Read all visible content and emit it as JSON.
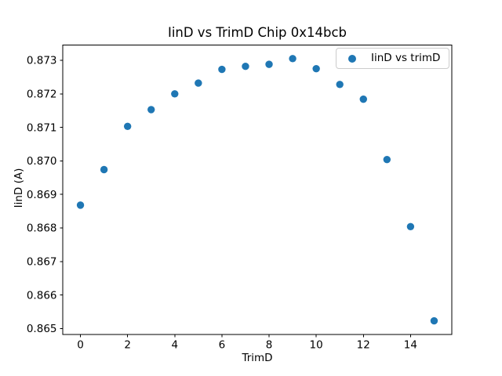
{
  "chart_data": {
    "type": "scatter",
    "title": "IinD vs TrimD Chip 0x14bcb",
    "xlabel": "TrimD",
    "ylabel": "IinD (A)",
    "legend": {
      "position": "upper right",
      "entries": [
        "IinD vs trimD"
      ]
    },
    "x": [
      0,
      1,
      2,
      3,
      4,
      5,
      6,
      7,
      8,
      9,
      10,
      11,
      12,
      13,
      14,
      15
    ],
    "y": [
      0.86868,
      0.86974,
      0.87103,
      0.87153,
      0.872,
      0.87232,
      0.87273,
      0.87282,
      0.87288,
      0.87305,
      0.87275,
      0.87228,
      0.87184,
      0.87004,
      0.86804,
      0.86523
    ],
    "xlim": [
      -0.75,
      15.75
    ],
    "ylim": [
      0.864817,
      0.873453
    ],
    "xtick_values": [
      0,
      2,
      4,
      6,
      8,
      10,
      12,
      14
    ],
    "xtick_labels": [
      "0",
      "2",
      "4",
      "6",
      "8",
      "10",
      "12",
      "14"
    ],
    "ytick_values": [
      0.865,
      0.866,
      0.867,
      0.868,
      0.869,
      0.87,
      0.871,
      0.872,
      0.873
    ],
    "ytick_labels": [
      "0.865",
      "0.866",
      "0.867",
      "0.868",
      "0.869",
      "0.870",
      "0.871",
      "0.872",
      "0.873"
    ],
    "grid": false,
    "marker_color": "#1f77b4",
    "axis_color": "#000000",
    "legend_border_color": "#cccccc"
  }
}
